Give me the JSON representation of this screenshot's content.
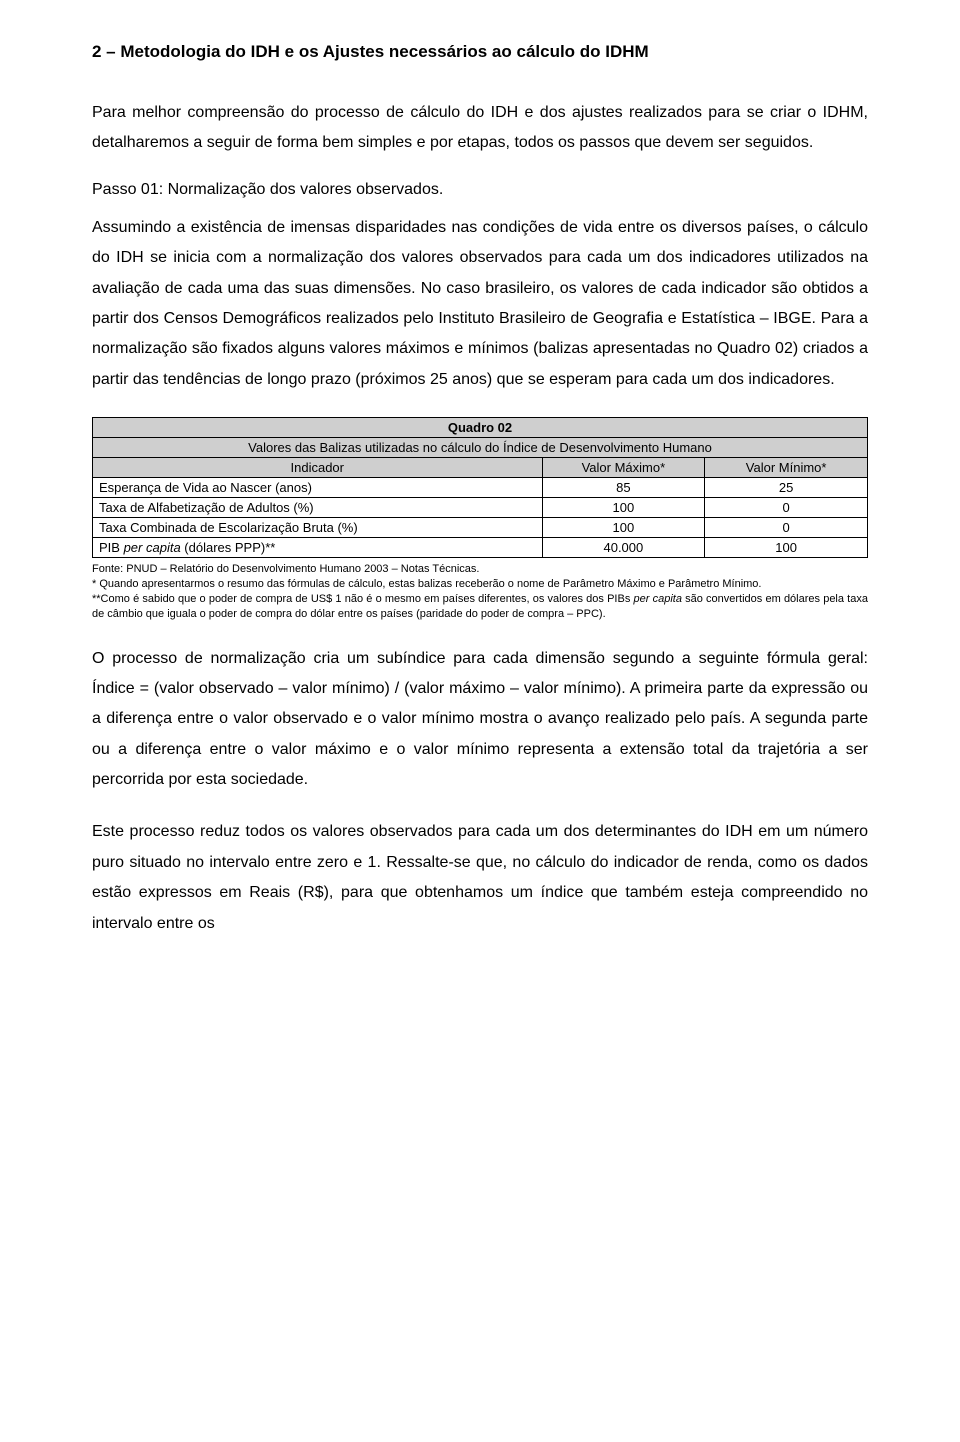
{
  "heading": "2 – Metodologia do IDH e os Ajustes necessários ao cálculo do IDHM",
  "p1": "Para melhor compreensão do processo de cálculo do IDH e dos ajustes realizados para se criar o IDHM, detalharemos a seguir de forma bem simples e por etapas, todos os passos que devem ser seguidos.",
  "subhead": "Passo 01: Normalização dos valores observados.",
  "p2": "Assumindo a existência de imensas disparidades nas condições de vida entre os diversos países, o cálculo do IDH se inicia com a normalização dos valores observados para cada um dos indicadores utilizados na avaliação de cada uma das suas dimensões. No caso brasileiro, os valores de cada indicador são obtidos a partir dos Censos Demográficos realizados pelo Instituto Brasileiro de Geografia e Estatística – IBGE. Para a normalização são fixados alguns valores máximos e mínimos (balizas apresentadas no Quadro 02) criados a partir das tendências de longo prazo (próximos 25 anos) que se esperam para cada um dos indicadores.",
  "table": {
    "title": "Quadro 02",
    "subtitle": "Valores das Balizas utilizadas no cálculo do Índice de Desenvolvimento Humano",
    "headers": [
      "Indicador",
      "Valor Máximo*",
      "Valor Mínimo*"
    ],
    "rows": [
      {
        "label": "Esperança de Vida ao Nascer (anos)",
        "max": "85",
        "min": "25"
      },
      {
        "label": "Taxa de Alfabetização de Adultos (%)",
        "max": "100",
        "min": "0"
      },
      {
        "label": "Taxa Combinada de Escolarização Bruta (%)",
        "max": "100",
        "min": "0"
      },
      {
        "label": "PIB per capita (dólares PPP)**",
        "label_pre": "PIB ",
        "label_it": "per capita",
        "label_post": " (dólares PPP)**",
        "max": "40.000",
        "min": "100"
      }
    ],
    "col_widths": [
      "58%",
      "21%",
      "21%"
    ],
    "colors": {
      "header_bg": "#cfcfcf",
      "border": "#000000"
    }
  },
  "footnote": {
    "f1": "Fonte: PNUD – Relatório do Desenvolvimento Humano 2003 – Notas Técnicas.",
    "f2": "* Quando apresentarmos o resumo das fórmulas de cálculo, estas balizas receberão o nome de Parâmetro Máximo e Parâmetro Mínimo.",
    "f3_pre": "**Como é sabido que o poder de compra de US$ 1 não é o mesmo em países diferentes, os valores dos PIBs ",
    "f3_it": "per capita",
    "f3_post": " são convertidos em dólares pela taxa de câmbio que iguala o poder de compra do dólar entre os países (paridade do poder de compra – PPC)."
  },
  "p3": "O processo de normalização cria um subíndice para cada dimensão segundo a seguinte fórmula geral: Índice = (valor observado – valor mínimo) / (valor máximo – valor mínimo). A primeira parte da expressão ou a diferença entre o valor observado e o valor mínimo mostra o avanço realizado pelo país. A segunda parte ou a diferença entre o valor máximo e o valor mínimo representa a extensão total da trajetória a ser percorrida por esta sociedade.",
  "p4": "Este processo reduz todos os valores observados para cada um dos determinantes do IDH em um número puro situado no intervalo entre zero e 1. Ressalte-se que, no cálculo do indicador de renda, como os dados estão expressos em Reais (R$), para que obtenhamos um índice que também esteja compreendido no intervalo entre os"
}
